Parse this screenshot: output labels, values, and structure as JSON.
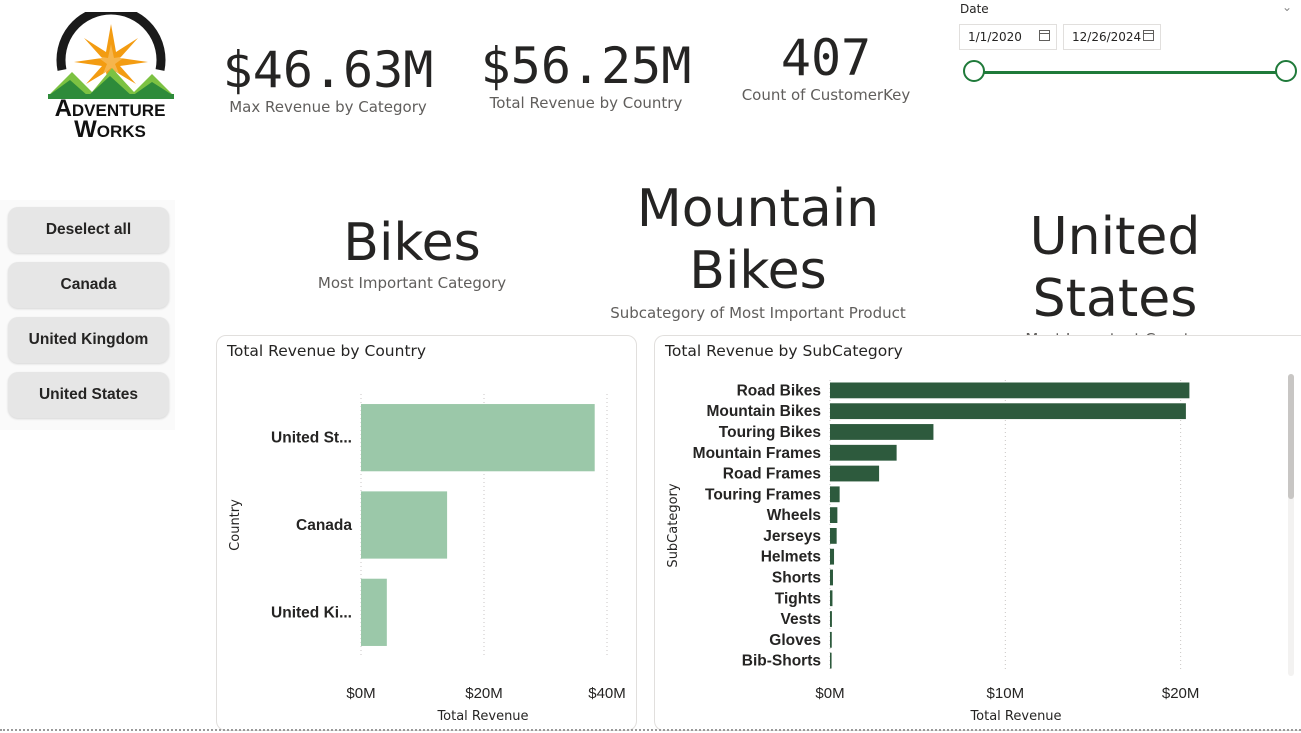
{
  "logo": {
    "line1": "Adventure",
    "line2": "Works"
  },
  "kpis": [
    {
      "value": "$46.63M",
      "label": "Max Revenue by Category"
    },
    {
      "value": "$56.25M",
      "label": "Total Revenue by Country"
    },
    {
      "value": "407",
      "label": "Count of CustomerKey"
    }
  ],
  "date_slicer": {
    "title": "Date",
    "start": "1/1/2020",
    "end": "12/26/2024",
    "range_fraction": [
      0,
      1
    ],
    "accent": "#1f7a3a"
  },
  "country_buttons": [
    {
      "label": "Deselect all"
    },
    {
      "label": "Canada"
    },
    {
      "label": "United Kingdom"
    },
    {
      "label": "United States"
    }
  ],
  "highlights": [
    {
      "value": "Bikes",
      "label": "Most Important Category"
    },
    {
      "value_line1": "Mountain",
      "value_line2": "Bikes",
      "label": "Subcategory of Most Important Product"
    },
    {
      "value": "United States",
      "label": "Most Important Country"
    }
  ],
  "chart_data": [
    {
      "type": "bar",
      "orientation": "horizontal",
      "title": "Total Revenue by Country",
      "xlabel": "Total Revenue",
      "ylabel": "Country",
      "categories": [
        "United St...",
        "Canada",
        "United Ki..."
      ],
      "values": [
        38000000,
        14000000,
        4200000
      ],
      "xlim": [
        0,
        40000000
      ],
      "xticks": [
        "$0M",
        "$20M",
        "$40M"
      ],
      "xtick_values": [
        0,
        20000000,
        40000000
      ],
      "color": "#9bc8a9",
      "grid": "vertical dotted"
    },
    {
      "type": "bar",
      "orientation": "horizontal",
      "title": "Total Revenue by SubCategory",
      "xlabel": "Total Revenue",
      "ylabel": "SubCategory",
      "categories": [
        "Road Bikes",
        "Mountain Bikes",
        "Touring Bikes",
        "Mountain Frames",
        "Road Frames",
        "Touring Frames",
        "Wheels",
        "Jerseys",
        "Helmets",
        "Shorts",
        "Tights",
        "Vests",
        "Gloves",
        "Bib-Shorts"
      ],
      "values": [
        20500000,
        20300000,
        5900000,
        3800000,
        2800000,
        550000,
        420000,
        380000,
        230000,
        170000,
        140000,
        110000,
        100000,
        90000
      ],
      "xlim": [
        0,
        23500000
      ],
      "xticks": [
        "$0M",
        "$10M",
        "$20M"
      ],
      "xtick_values": [
        0,
        10000000,
        20000000
      ],
      "color": "#2d5a3d",
      "grid": "vertical dotted"
    }
  ]
}
